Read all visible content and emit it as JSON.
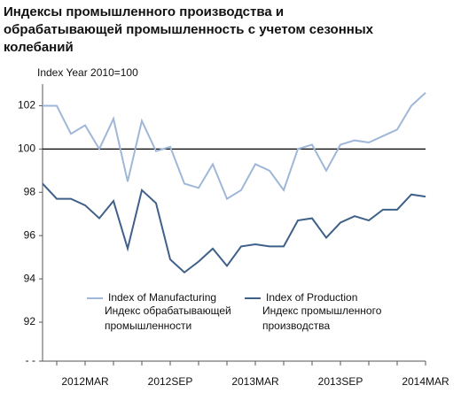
{
  "chart_data": {
    "type": "line",
    "title": [
      "Индексы промышленного производства и",
      "обрабатывающей промышленность с учетом сезонных",
      "колебаний"
    ],
    "subtitle": "Index Year 2010=100",
    "categories": [
      null,
      null,
      null,
      "2012MAR",
      null,
      null,
      null,
      null,
      null,
      "2012SEP",
      null,
      null,
      null,
      null,
      null,
      "2013MAR",
      null,
      null,
      null,
      null,
      null,
      "2013SEP",
      null,
      null,
      null,
      null,
      null,
      "2014MAR"
    ],
    "series": [
      {
        "name": "Index of Manufacturing",
        "name_ru": [
          "Индекс обрабатывающей",
          "промышленности"
        ],
        "color": "#9fb7d8",
        "values": [
          102.0,
          102.0,
          100.7,
          101.1,
          100.0,
          101.4,
          98.5,
          101.3,
          99.9,
          100.1,
          98.4,
          98.2,
          99.3,
          97.7,
          98.1,
          99.3,
          99.0,
          98.1,
          100.0,
          100.2,
          99.0,
          100.2,
          100.4,
          100.3,
          100.6,
          100.9,
          102.0,
          102.6
        ]
      },
      {
        "name": "Index of Production",
        "name_ru": [
          "Индекс промышленного",
          "производства"
        ],
        "color": "#3e6089",
        "values": [
          98.4,
          97.7,
          97.7,
          97.4,
          96.8,
          97.6,
          95.4,
          98.1,
          97.5,
          94.9,
          94.3,
          94.8,
          95.4,
          94.6,
          95.5,
          95.6,
          95.5,
          95.5,
          96.7,
          96.8,
          95.9,
          96.6,
          96.9,
          96.7,
          97.2,
          97.2,
          97.9,
          97.8
        ]
      }
    ],
    "ylim": [
      90.2,
      103
    ],
    "yticks": [
      {
        "value": 90.2,
        "label": "- -"
      },
      92,
      94,
      96,
      98,
      100,
      102
    ],
    "refline": 100,
    "grid": false
  }
}
